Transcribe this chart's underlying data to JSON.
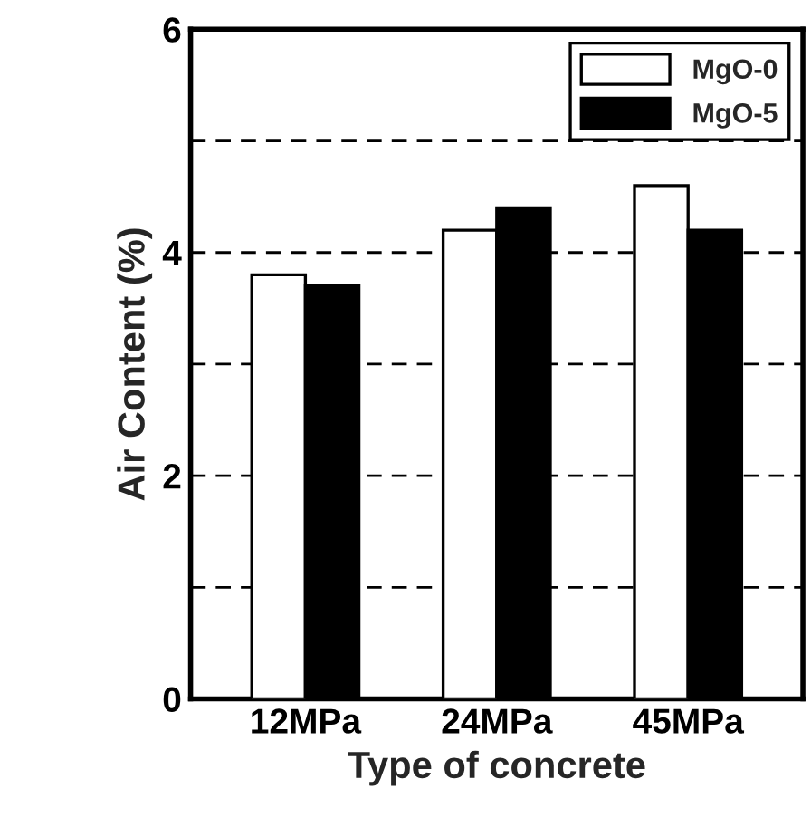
{
  "chart_data": {
    "type": "bar",
    "xlabel": "Type of concrete",
    "ylabel": "Air Content (%)",
    "categories": [
      "12MPa",
      "24MPa",
      "45MPa"
    ],
    "series": [
      {
        "name": "MgO-0",
        "color": "#ffffff",
        "values": [
          3.8,
          4.2,
          4.6
        ]
      },
      {
        "name": "MgO-5",
        "color": "#000000",
        "values": [
          3.7,
          4.4,
          4.2
        ]
      }
    ],
    "ylim": [
      0,
      6
    ],
    "yticks": [
      0,
      {
        "value": 1,
        "label": null
      },
      2,
      {
        "value": 3,
        "label": null
      },
      4,
      {
        "value": 5,
        "label": null
      },
      6
    ],
    "grid": "y",
    "legend": "top right"
  }
}
